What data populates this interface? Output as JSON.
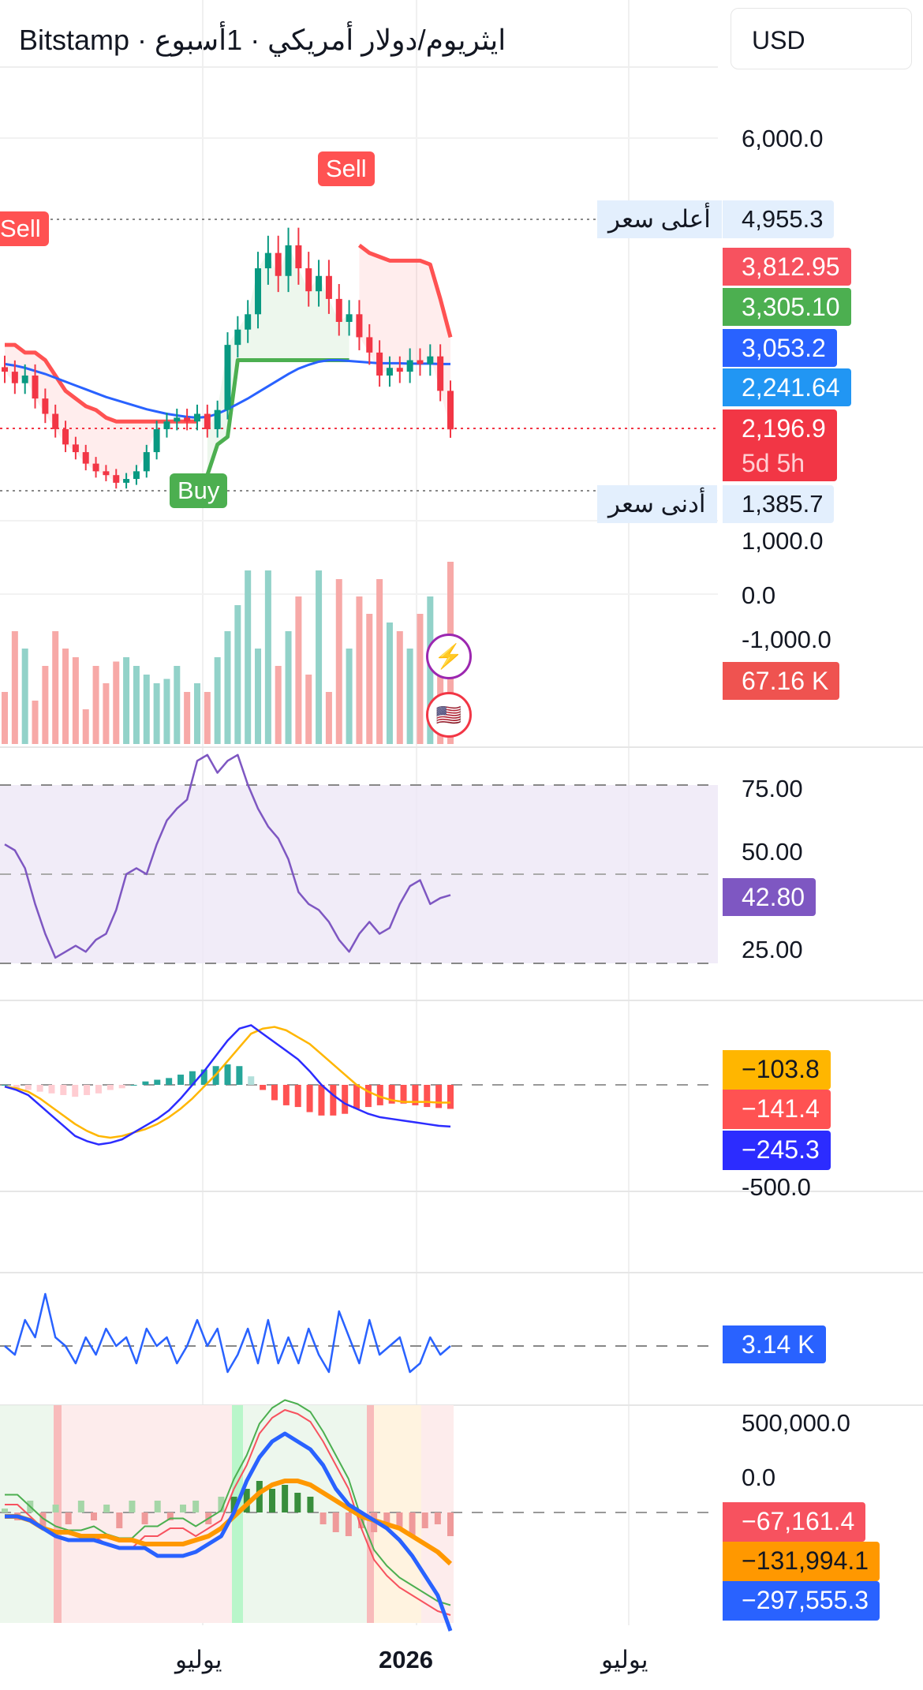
{
  "header": {
    "title": "Bitstamp · ايثريوم/دولار أمريكي · 1أسبوع",
    "currency": "USD"
  },
  "price_axis": {
    "ticks": [
      "6,000.0",
      "1,000.0"
    ],
    "high_label": "أعلى سعر",
    "high_value": "4,955.3",
    "low_label": "أدنى سعر",
    "low_value": "1,385.7",
    "badges": [
      {
        "value": "3,812.95",
        "color": "#f7525f"
      },
      {
        "value": "3,305.10",
        "color": "#4caf50"
      },
      {
        "value": "3,053.2",
        "color": "#2962ff"
      },
      {
        "value": "2,241.64",
        "color": "#2196f3"
      }
    ],
    "last_price": "2,196.9",
    "countdown": "5d 5h",
    "last_color": "#f23645"
  },
  "signals": {
    "sell": "Sell",
    "buy": "Buy"
  },
  "volume": {
    "ticks": [
      "0.0",
      "-1,000.0"
    ],
    "badge": "67.16 K"
  },
  "events": [
    {
      "icon": "lightning-icon"
    },
    {
      "icon": "us-flag-icon"
    }
  ],
  "rsi": {
    "ticks": [
      "75.00",
      "50.00",
      "25.00"
    ],
    "badge": "42.80",
    "color": "#7e57c2"
  },
  "macd": {
    "tick": "-500.0",
    "badges": [
      {
        "value": "−103.8",
        "color": "#ffb600",
        "text": "#131722"
      },
      {
        "value": "−141.4",
        "color": "#ff5252",
        "text": "#ffffff"
      },
      {
        "value": "−245.3",
        "color": "#2c2cff",
        "text": "#ffffff"
      }
    ]
  },
  "osc": {
    "badge": "3.14 K",
    "color": "#2962ff"
  },
  "flow": {
    "ticks": [
      "500,000.0",
      "0.0"
    ],
    "badges": [
      {
        "value": "−67,161.4",
        "color": "#f7525f",
        "text": "#ffffff"
      },
      {
        "value": "−131,994.1",
        "color": "#ff9800",
        "text": "#131722"
      },
      {
        "value": "−297,555.3",
        "color": "#2962ff",
        "text": "#ffffff"
      }
    ]
  },
  "time_axis": [
    "يوليو",
    "2026",
    "يوليو"
  ],
  "chart_data": {
    "type": "candlestick",
    "closes": [
      2950,
      2800,
      2900,
      2600,
      2400,
      2200,
      2000,
      1900,
      1750,
      1650,
      1600,
      1500,
      1550,
      1650,
      1900,
      2200,
      2300,
      2350,
      2300,
      2400,
      2200,
      2450,
      3300,
      3500,
      3700,
      4300,
      4500,
      4200,
      4600,
      4300,
      4000,
      4200,
      3900,
      3600,
      3700,
      3400,
      3200,
      2900,
      3000,
      2950,
      3100,
      3050,
      3150,
      2700,
      2197
    ],
    "supertrend_down": [
      3300,
      3300,
      3200,
      3200,
      3100,
      2900,
      2700,
      2600,
      2500,
      2450,
      2350,
      2300,
      2300,
      2300,
      2300,
      2300,
      2300,
      2300,
      2300,
      2300,
      null,
      null,
      null,
      null,
      null,
      null,
      null,
      null,
      null,
      null,
      null,
      null,
      null,
      null,
      null,
      4600,
      4500,
      4450,
      4400,
      4400,
      4400,
      4400,
      4350,
      3900,
      3400
    ],
    "supertrend_up": [
      null,
      null,
      null,
      null,
      null,
      null,
      null,
      null,
      null,
      null,
      null,
      null,
      null,
      null,
      null,
      null,
      null,
      null,
      null,
      null,
      1600,
      2000,
      2100,
      3100,
      3100,
      3100,
      3100,
      3100,
      3100,
      3100,
      3100,
      3100,
      3100,
      3100,
      3100,
      null,
      null,
      null,
      null,
      null,
      null,
      null,
      null,
      null,
      null
    ],
    "ma": [
      3050,
      3030,
      3000,
      2960,
      2920,
      2870,
      2820,
      2770,
      2720,
      2670,
      2620,
      2580,
      2540,
      2500,
      2460,
      2430,
      2400,
      2380,
      2360,
      2350,
      2360,
      2400,
      2460,
      2530,
      2600,
      2680,
      2760,
      2840,
      2920,
      2990,
      3040,
      3080,
      3100,
      3100,
      3090,
      3080,
      3070,
      3060,
      3060,
      3060,
      3055,
      3055,
      3055,
      3050,
      3050
    ],
    "volume": [
      60,
      130,
      110,
      50,
      90,
      130,
      110,
      100,
      40,
      90,
      70,
      95,
      100,
      90,
      80,
      70,
      75,
      90,
      60,
      70,
      60,
      100,
      130,
      160,
      200,
      110,
      200,
      90,
      130,
      170,
      80,
      200,
      60,
      190,
      110,
      170,
      150,
      190,
      140,
      130,
      110,
      150,
      170,
      120,
      210
    ],
    "rsi": [
      60,
      58,
      52,
      40,
      30,
      22,
      24,
      26,
      24,
      28,
      30,
      38,
      50,
      52,
      50,
      60,
      68,
      72,
      75,
      88,
      90,
      84,
      88,
      90,
      80,
      72,
      66,
      62,
      55,
      44,
      40,
      38,
      34,
      28,
      24,
      30,
      34,
      30,
      32,
      40,
      46,
      48,
      40,
      42,
      43
    ],
    "macd": [
      -10,
      -30,
      -60,
      -120,
      -180,
      -240,
      -300,
      -330,
      -350,
      -340,
      -320,
      -280,
      -240,
      -200,
      -150,
      -80,
      0,
      80,
      170,
      260,
      330,
      350,
      300,
      250,
      200,
      150,
      80,
      0,
      -60,
      -110,
      -140,
      -170,
      -190,
      -200,
      -210,
      -220,
      -230,
      -240,
      -245
    ],
    "macd_signal": [
      -10,
      -20,
      -40,
      -80,
      -130,
      -180,
      -230,
      -270,
      -300,
      -310,
      -300,
      -280,
      -260,
      -230,
      -190,
      -140,
      -80,
      -10,
      60,
      140,
      220,
      300,
      330,
      340,
      320,
      280,
      240,
      180,
      120,
      60,
      0,
      -40,
      -70,
      -90,
      -100,
      -100,
      -100,
      -104,
      -104
    ],
    "macd_hist": [
      0,
      -20,
      -30,
      -40,
      -50,
      -60,
      -70,
      -60,
      -50,
      -30,
      -20,
      0,
      20,
      30,
      40,
      60,
      80,
      90,
      110,
      120,
      110,
      50,
      -30,
      -90,
      -120,
      -130,
      -160,
      -180,
      -180,
      -170,
      -140,
      -130,
      -120,
      -110,
      -110,
      -120,
      -130,
      -136,
      -141
    ],
    "osc": [
      0,
      -10,
      30,
      10,
      60,
      10,
      0,
      -20,
      10,
      -10,
      20,
      0,
      10,
      -20,
      20,
      0,
      10,
      -20,
      0,
      30,
      0,
      20,
      -30,
      -10,
      20,
      -20,
      30,
      -20,
      10,
      -20,
      20,
      -10,
      -30,
      40,
      10,
      -20,
      30,
      -10,
      0,
      10,
      -30,
      -20,
      10,
      -10,
      0
    ],
    "flow_fast": [
      20,
      20,
      -10,
      -40,
      -60,
      -70,
      -70,
      -60,
      -80,
      -90,
      -90,
      -60,
      -60,
      -40,
      -40,
      -60,
      -40,
      -20,
      60,
      120,
      200,
      240,
      260,
      250,
      230,
      180,
      120,
      60,
      -40,
      -120,
      -160,
      -190,
      -210,
      -230,
      -250,
      -260
    ],
    "flow_line": [
      -10,
      -10,
      -20,
      -40,
      -60,
      -70,
      -70,
      -70,
      -80,
      -90,
      -90,
      -90,
      -110,
      -110,
      -110,
      -100,
      -80,
      -60,
      0,
      80,
      140,
      180,
      200,
      180,
      160,
      120,
      60,
      20,
      0,
      -20,
      -40,
      -70,
      -110,
      -160,
      -210,
      -300
    ],
    "flow_signal": [
      -10,
      -10,
      -20,
      -40,
      -50,
      -50,
      -60,
      -60,
      -60,
      -70,
      -70,
      -80,
      -80,
      -80,
      -80,
      -70,
      -60,
      -40,
      -10,
      20,
      50,
      70,
      80,
      80,
      70,
      50,
      30,
      10,
      -10,
      -20,
      -30,
      -40,
      -60,
      -80,
      -100,
      -130
    ],
    "flow_hist": [
      10,
      -20,
      30,
      -40,
      20,
      -30,
      30,
      -20,
      20,
      -40,
      30,
      -30,
      30,
      -20,
      20,
      30,
      -30,
      40,
      40,
      60,
      80,
      60,
      70,
      50,
      40,
      -30,
      -50,
      -60,
      -40,
      -50,
      -30,
      -40,
      -60,
      -40,
      -30,
      -60
    ]
  }
}
